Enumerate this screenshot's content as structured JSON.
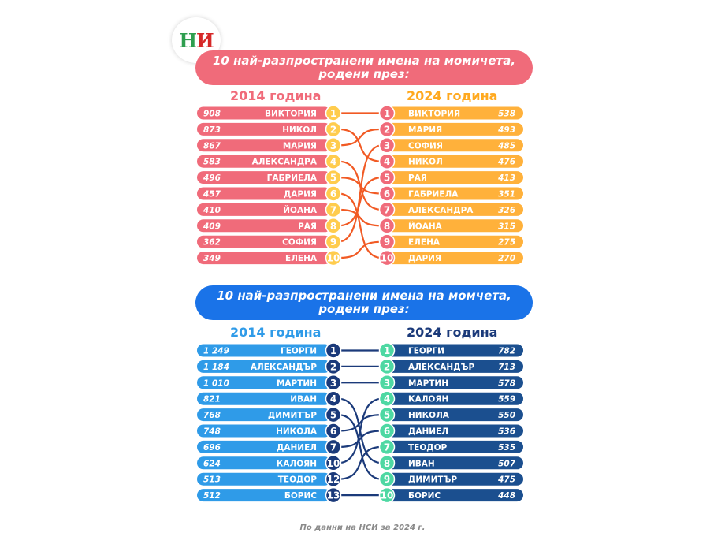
{
  "logo": {
    "text": "НИ",
    "colors": [
      "#2e9e4f",
      "#d62828"
    ]
  },
  "girls": {
    "title_line1": "10 най-разпространени имена на момичета,",
    "title_line2": "родени през:",
    "left_header": "2014 година",
    "right_header": "2024 година",
    "colors": {
      "banner": "#f06b7a",
      "left_bar": "#f06b7a",
      "left_circle": "#ffcc4d",
      "right_bar": "#ffb13b",
      "right_circle": "#f06b7a",
      "lines": "#f15a24",
      "left_header": "#f06b7a",
      "right_header": "#ffa91f"
    },
    "left": [
      {
        "value": "908",
        "name": "ВИКТОРИЯ",
        "rank": "1"
      },
      {
        "value": "873",
        "name": "НИКОЛ",
        "rank": "2"
      },
      {
        "value": "867",
        "name": "МАРИЯ",
        "rank": "3"
      },
      {
        "value": "583",
        "name": "АЛЕКСАНДРА",
        "rank": "4"
      },
      {
        "value": "496",
        "name": "ГАБРИЕЛА",
        "rank": "5"
      },
      {
        "value": "457",
        "name": "ДАРИЯ",
        "rank": "6"
      },
      {
        "value": "410",
        "name": "ЙОАНА",
        "rank": "7"
      },
      {
        "value": "409",
        "name": "РАЯ",
        "rank": "8"
      },
      {
        "value": "362",
        "name": "СОФИЯ",
        "rank": "9"
      },
      {
        "value": "349",
        "name": "ЕЛЕНА",
        "rank": "10"
      }
    ],
    "right": [
      {
        "rank": "1",
        "name": "ВИКТОРИЯ",
        "value": "538"
      },
      {
        "rank": "2",
        "name": "МАРИЯ",
        "value": "493"
      },
      {
        "rank": "3",
        "name": "СОФИЯ",
        "value": "485"
      },
      {
        "rank": "4",
        "name": "НИКОЛ",
        "value": "476"
      },
      {
        "rank": "5",
        "name": "РАЯ",
        "value": "413"
      },
      {
        "rank": "6",
        "name": "ГАБРИЕЛА",
        "value": "351"
      },
      {
        "rank": "7",
        "name": "АЛЕКСАНДРА",
        "value": "326"
      },
      {
        "rank": "8",
        "name": "ЙОАНА",
        "value": "315"
      },
      {
        "rank": "9",
        "name": "ЕЛЕНА",
        "value": "275"
      },
      {
        "rank": "10",
        "name": "ДАРИЯ",
        "value": "270"
      }
    ]
  },
  "boys": {
    "title_line1": "10 най-разпространени имена на момчета,",
    "title_line2": "родени през:",
    "left_header": "2014 година",
    "right_header": "2024 година",
    "colors": {
      "banner": "#1a73e8",
      "left_bar": "#2f9be8",
      "left_circle": "#1b3a7a",
      "right_bar": "#1b4f8f",
      "right_circle": "#4ed8a3",
      "lines": "#1b3a7a",
      "left_header": "#2f9be8",
      "right_header": "#1b3a7a"
    },
    "left": [
      {
        "value": "1 249",
        "name": "ГЕОРГИ",
        "rank": "1"
      },
      {
        "value": "1 184",
        "name": "АЛЕКСАНДЪР",
        "rank": "2"
      },
      {
        "value": "1 010",
        "name": "МАРТИН",
        "rank": "3"
      },
      {
        "value": "821",
        "name": "ИВАН",
        "rank": "4"
      },
      {
        "value": "768",
        "name": "ДИМИТЪР",
        "rank": "5"
      },
      {
        "value": "748",
        "name": "НИКОЛА",
        "rank": "6"
      },
      {
        "value": "696",
        "name": "ДАНИЕЛ",
        "rank": "7"
      },
      {
        "value": "624",
        "name": "КАЛОЯН",
        "rank": "10"
      },
      {
        "value": "513",
        "name": "ТЕОДОР",
        "rank": "12"
      },
      {
        "value": "512",
        "name": "БОРИС",
        "rank": "13"
      }
    ],
    "right": [
      {
        "rank": "1",
        "name": "ГЕОРГИ",
        "value": "782"
      },
      {
        "rank": "2",
        "name": "АЛЕКСАНДЪР",
        "value": "713"
      },
      {
        "rank": "3",
        "name": "МАРТИН",
        "value": "578"
      },
      {
        "rank": "4",
        "name": "КАЛОЯН",
        "value": "559"
      },
      {
        "rank": "5",
        "name": "НИКОЛА",
        "value": "550"
      },
      {
        "rank": "6",
        "name": "ДАНИЕЛ",
        "value": "536"
      },
      {
        "rank": "7",
        "name": "ТЕОДОР",
        "value": "535"
      },
      {
        "rank": "8",
        "name": "ИВАН",
        "value": "507"
      },
      {
        "rank": "9",
        "name": "ДИМИТЪР",
        "value": "475"
      },
      {
        "rank": "10",
        "name": "БОРИС",
        "value": "448"
      }
    ]
  },
  "footer": "По данни на НСИ за 2024 г."
}
